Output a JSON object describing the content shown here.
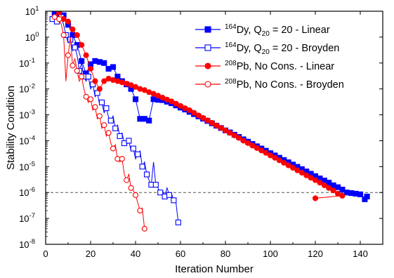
{
  "chart_data": {
    "type": "line",
    "title": "",
    "xlabel": "Iteration Number",
    "ylabel": "Stability Condition",
    "xlim": [
      0,
      150
    ],
    "ylim_exp": [
      -8,
      1
    ],
    "y_scale": "log",
    "x_ticks": [
      0,
      20,
      40,
      60,
      80,
      100,
      120,
      140
    ],
    "y_ticks": [
      {
        "exp": 1,
        "label": "10",
        "sup": "1"
      },
      {
        "exp": 0,
        "label": "10",
        "sup": "0"
      },
      {
        "exp": -1,
        "label": "10",
        "sup": "-1"
      },
      {
        "exp": -2,
        "label": "10",
        "sup": "-2"
      },
      {
        "exp": -3,
        "label": "10",
        "sup": "-3"
      },
      {
        "exp": -4,
        "label": "10",
        "sup": "-4"
      },
      {
        "exp": -5,
        "label": "10",
        "sup": "-5"
      },
      {
        "exp": -6,
        "label": "10",
        "sup": "-6"
      },
      {
        "exp": -7,
        "label": "10",
        "sup": "-7"
      },
      {
        "exp": -8,
        "label": "10",
        "sup": "-8"
      }
    ],
    "reference_line": {
      "y": 1e-06,
      "style": "dashed",
      "color": "#555555"
    },
    "legend_position": "top-right",
    "series": [
      {
        "legend": {
          "sup": "164",
          "label_main": "Dy, Q",
          "sub": "20",
          "label_tail": " = 20 - Linear"
        },
        "color": "#0000ff",
        "marker": "square",
        "filled": true,
        "points": [
          [
            4,
            8
          ],
          [
            6,
            8
          ],
          [
            8,
            7
          ],
          [
            10,
            3
          ],
          [
            12,
            1.2
          ],
          [
            14,
            0.5
          ],
          [
            16,
            0.12
          ],
          [
            18,
            0.04
          ],
          [
            20,
            0.09
          ],
          [
            22,
            0.12
          ],
          [
            24,
            0.11
          ],
          [
            26,
            0.1
          ],
          [
            28,
            0.06
          ],
          [
            30,
            0.07
          ],
          [
            32,
            0.03
          ],
          [
            34,
            0.02
          ],
          [
            36,
            0.015
          ],
          [
            38,
            0.01
          ],
          [
            40,
            0.004
          ],
          [
            42,
            0.0007
          ],
          [
            44,
            0.0007
          ],
          [
            46,
            0.0006
          ],
          [
            48,
            0.004
          ],
          [
            50,
            0.0038
          ],
          [
            52,
            0.0037
          ],
          [
            54,
            0.0032
          ],
          [
            56,
            0.0028
          ],
          [
            58,
            0.0023
          ],
          [
            60,
            0.0019
          ],
          [
            62,
            0.0016
          ],
          [
            64,
            0.0013
          ],
          [
            66,
            0.00106
          ],
          [
            68,
            0.00087
          ],
          [
            70,
            0.00071
          ],
          [
            72,
            0.00058
          ],
          [
            74,
            0.00047
          ],
          [
            76,
            0.00038
          ],
          [
            78,
            0.00031
          ],
          [
            80,
            0.00025
          ],
          [
            82,
            0.00021
          ],
          [
            84,
            0.00017
          ],
          [
            86,
            0.00014
          ],
          [
            88,
            0.000113
          ],
          [
            90,
            9.2e-05
          ],
          [
            92,
            7.5e-05
          ],
          [
            94,
            6.1e-05
          ],
          [
            96,
            5e-05
          ],
          [
            98,
            4.1e-05
          ],
          [
            100,
            3.3e-05
          ],
          [
            102,
            2.7e-05
          ],
          [
            104,
            2.2e-05
          ],
          [
            106,
            1.8e-05
          ],
          [
            108,
            1.47e-05
          ],
          [
            110,
            1.2e-05
          ],
          [
            112,
            9.8e-06
          ],
          [
            114,
            8e-06
          ],
          [
            116,
            6.5e-06
          ],
          [
            118,
            5.3e-06
          ],
          [
            120,
            4.3e-06
          ],
          [
            122,
            3.5e-06
          ],
          [
            124,
            2.9e-06
          ],
          [
            126,
            2.4e-06
          ],
          [
            128,
            1.9e-06
          ],
          [
            130,
            1.6e-06
          ],
          [
            132,
            1.3e-06
          ],
          [
            134,
            1e-06
          ],
          [
            136,
            9.5e-07
          ],
          [
            138,
            9e-07
          ],
          [
            140,
            8.5e-07
          ],
          [
            142,
            5.5e-07
          ],
          [
            143,
            7e-07
          ]
        ]
      },
      {
        "legend": {
          "sup": "164",
          "label_main": "Dy, Q",
          "sub": "20",
          "label_tail": " = 20 - Broyden"
        },
        "color": "#0000ff",
        "marker": "square",
        "filled": false,
        "points": [
          [
            3,
            5
          ],
          [
            4,
            7
          ],
          [
            5,
            4
          ],
          [
            6,
            7
          ],
          [
            7,
            6
          ],
          [
            8,
            3
          ],
          [
            9,
            1.2
          ],
          [
            10,
            0.6
          ],
          [
            11,
            0.8
          ],
          [
            12,
            0.3
          ],
          [
            13,
            0.4
          ],
          [
            14,
            0.2
          ],
          [
            15,
            0.05
          ],
          [
            16,
            0.1
          ],
          [
            17,
            0.03
          ],
          [
            18,
            0.02
          ],
          [
            19,
            0.03
          ],
          [
            20,
            0.01
          ],
          [
            21,
            0.015
          ],
          [
            22,
            0.005
          ],
          [
            23,
            0.007
          ],
          [
            24,
            0.0025
          ],
          [
            25,
            0.003
          ],
          [
            26,
            0.0012
          ],
          [
            27,
            0.0018
          ],
          [
            28,
            0.0008
          ],
          [
            29,
            0.0006
          ],
          [
            30,
            0.0009
          ],
          [
            31,
            0.0003
          ],
          [
            32,
            0.0004
          ],
          [
            33,
            0.00015
          ],
          [
            34,
            0.0002
          ],
          [
            35,
            8e-05
          ],
          [
            36,
            7e-05
          ],
          [
            37,
            0.0001
          ],
          [
            38,
            4e-05
          ],
          [
            39,
            5e-05
          ],
          [
            40,
            2e-05
          ],
          [
            41,
            3e-05
          ],
          [
            42,
            4e-05
          ],
          [
            43,
            1e-05
          ],
          [
            44,
            1.5e-05
          ],
          [
            45,
            5e-06
          ],
          [
            46,
            3e-06
          ],
          [
            47,
            2e-06
          ],
          [
            48,
            1.5e-05
          ],
          [
            49,
            2e-06
          ],
          [
            50,
            1.5e-06
          ],
          [
            51,
            1e-06
          ],
          [
            52,
            1.2e-06
          ],
          [
            53,
            7e-07
          ],
          [
            54,
            1.5e-06
          ],
          [
            55,
            8e-07
          ],
          [
            56,
            9e-07
          ],
          [
            57,
            5e-07
          ],
          [
            58,
            4e-07
          ],
          [
            59,
            7e-08
          ]
        ]
      },
      {
        "legend": {
          "sup": "208",
          "label_main": "Pb, No Cons. - Linear",
          "sub": "",
          "label_tail": ""
        },
        "color": "#ff0000",
        "marker": "circle",
        "filled": true,
        "points": [
          [
            6,
            9
          ],
          [
            8,
            5
          ],
          [
            10,
            4
          ],
          [
            12,
            2
          ],
          [
            14,
            1.2
          ],
          [
            16,
            0.5
          ],
          [
            18,
            0.2
          ],
          [
            20,
            0.06
          ],
          [
            22,
            0.02
          ],
          [
            24,
            0.01
          ],
          [
            26,
            0.02
          ],
          [
            28,
            0.025
          ],
          [
            30,
            0.022
          ],
          [
            32,
            0.02
          ],
          [
            34,
            0.018
          ],
          [
            36,
            0.016
          ],
          [
            38,
            0.014
          ],
          [
            40,
            0.012
          ],
          [
            42,
            0.01
          ],
          [
            44,
            0.009
          ],
          [
            46,
            0.0075
          ],
          [
            48,
            0.0065
          ],
          [
            50,
            0.0055
          ],
          [
            52,
            0.0046
          ],
          [
            54,
            0.0039
          ],
          [
            56,
            0.0033
          ],
          [
            58,
            0.0027
          ],
          [
            60,
            0.0022
          ],
          [
            62,
            0.0018
          ],
          [
            64,
            0.0015
          ],
          [
            66,
            0.0012
          ],
          [
            68,
            0.00095
          ],
          [
            70,
            0.00076
          ],
          [
            72,
            0.00061
          ],
          [
            74,
            0.00049
          ],
          [
            76,
            0.00039
          ],
          [
            78,
            0.00031
          ],
          [
            80,
            0.00025
          ],
          [
            82,
            0.0002
          ],
          [
            84,
            0.00016
          ],
          [
            86,
            0.000128
          ],
          [
            88,
            0.0001
          ],
          [
            90,
            8.1e-05
          ],
          [
            92,
            6.5e-05
          ],
          [
            94,
            5.2e-05
          ],
          [
            96,
            4.2e-05
          ],
          [
            98,
            3.4e-05
          ],
          [
            100,
            2.7e-05
          ],
          [
            102,
            2.2e-05
          ],
          [
            104,
            1.75e-05
          ],
          [
            106,
            1.4e-05
          ],
          [
            108,
            1.12e-05
          ],
          [
            110,
            9e-06
          ],
          [
            112,
            7.2e-06
          ],
          [
            114,
            5.8e-06
          ],
          [
            116,
            4.6e-06
          ],
          [
            118,
            3.7e-06
          ],
          [
            120,
            3e-06
          ],
          [
            122,
            2.4e-06
          ],
          [
            124,
            1.9e-06
          ],
          [
            126,
            1.5e-06
          ],
          [
            128,
            1.2e-06
          ],
          [
            130,
            9e-07
          ],
          [
            132,
            7.5e-07
          ],
          [
            120,
            6e-07
          ]
        ]
      },
      {
        "legend": {
          "sup": "208",
          "label_main": "Pb, No Cons. - Broyden",
          "sub": "",
          "label_tail": ""
        },
        "color": "#ff0000",
        "marker": "circle",
        "filled": false,
        "points": [
          [
            4,
            6
          ],
          [
            5,
            8
          ],
          [
            6,
            5
          ],
          [
            7,
            3
          ],
          [
            8,
            1.2
          ],
          [
            9,
            0.02
          ],
          [
            10,
            0.2
          ],
          [
            11,
            1
          ],
          [
            12,
            0.08
          ],
          [
            13,
            0.15
          ],
          [
            14,
            0.05
          ],
          [
            15,
            0.02
          ],
          [
            16,
            0.03
          ],
          [
            17,
            0.01
          ],
          [
            18,
            0.005
          ],
          [
            19,
            0.003
          ],
          [
            20,
            0.004
          ],
          [
            21,
            0.0015
          ],
          [
            22,
            0.002
          ],
          [
            23,
            0.0007
          ],
          [
            24,
            0.0009
          ],
          [
            25,
            0.0003
          ],
          [
            26,
            0.0004
          ],
          [
            27,
            0.00015
          ],
          [
            28,
            0.0002
          ],
          [
            29,
            8e-05
          ],
          [
            30,
            5e-05
          ],
          [
            31,
            7e-05
          ],
          [
            32,
            2e-05
          ],
          [
            33,
            1.5e-05
          ],
          [
            34,
            2e-05
          ],
          [
            35,
            5e-06
          ],
          [
            36,
            3e-06
          ],
          [
            37,
            5e-06
          ],
          [
            38,
            1.5e-06
          ],
          [
            39,
            1.2e-06
          ],
          [
            40,
            8e-07
          ],
          [
            41,
            4e-07
          ],
          [
            42,
            2e-07
          ],
          [
            43,
            2.5e-07
          ],
          [
            44,
            4e-08
          ]
        ]
      }
    ]
  }
}
